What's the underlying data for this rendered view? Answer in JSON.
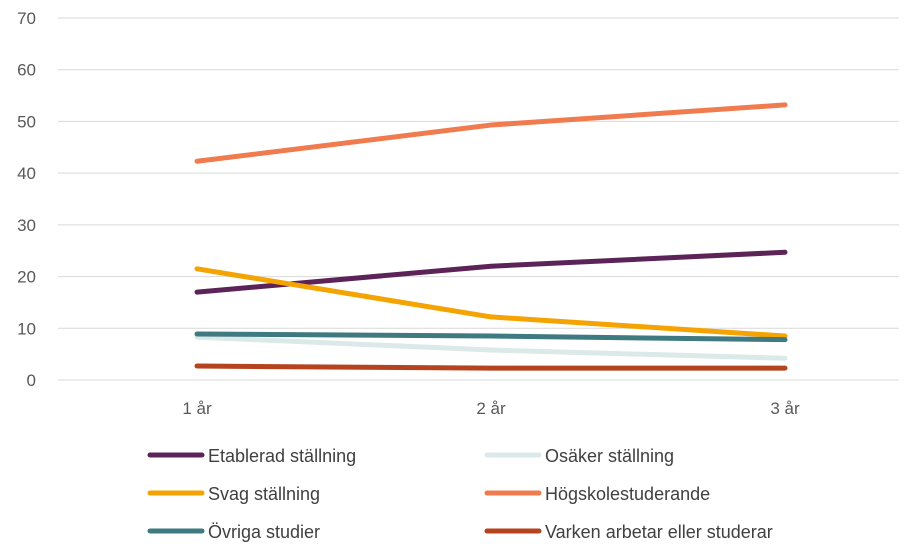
{
  "chart_data": {
    "type": "line",
    "title": "",
    "xlabel": "",
    "ylabel": "",
    "categories": [
      "1 år",
      "2 år",
      "3 år"
    ],
    "ylim": [
      0,
      70
    ],
    "yticks": [
      "0",
      "10",
      "20",
      "30",
      "40",
      "50",
      "60",
      "70"
    ],
    "grid": true,
    "legend_position": "bottom",
    "series": [
      {
        "name": "Etablerad ställning",
        "color": "#5c2358",
        "values": [
          17,
          22,
          24.7
        ]
      },
      {
        "name": "Osäker ställning",
        "color": "#dbe9e8",
        "values": [
          8.3,
          5.8,
          4.2
        ]
      },
      {
        "name": "Svag ställning",
        "color": "#f5a300",
        "values": [
          21.5,
          12.2,
          8.5
        ]
      },
      {
        "name": "Högskolestuderande",
        "color": "#ef7b4e",
        "values": [
          42.3,
          49.3,
          53.2
        ]
      },
      {
        "name": "Övriga studier",
        "color": "#3f7a80",
        "values": [
          8.9,
          8.5,
          7.8
        ]
      },
      {
        "name": "Varken arbetar eller studerar",
        "color": "#b5441e",
        "values": [
          2.7,
          2.3,
          2.3
        ]
      }
    ]
  }
}
